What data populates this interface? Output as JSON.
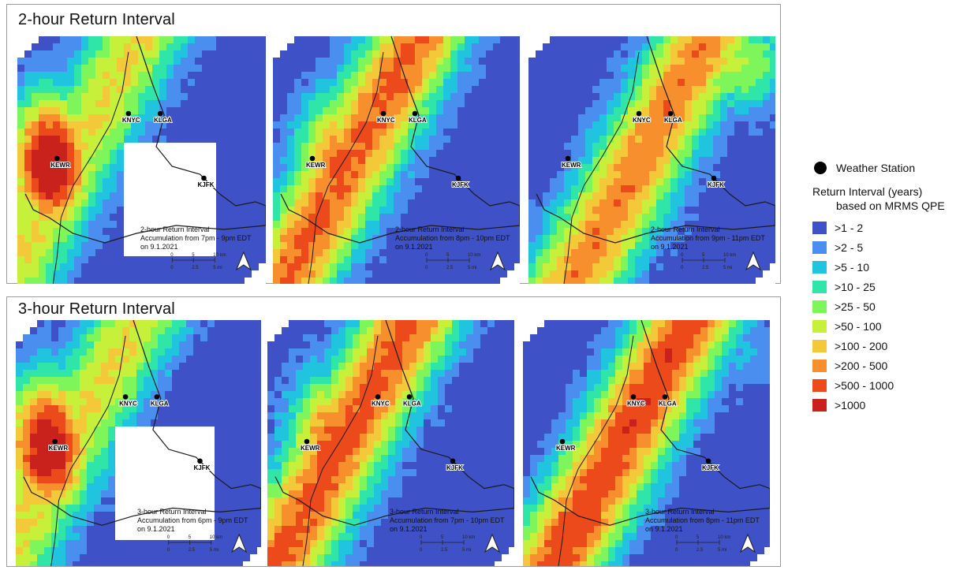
{
  "sections": [
    {
      "title": "2-hour Return Interval",
      "panels": [
        {
          "line1": "2-hour Return Interval",
          "line2": "Accumulation from 7pm - 9pm EDT",
          "line3": "on 9.1.2021",
          "peak_class": 10,
          "west_bias": 1.0,
          "intensity": 0.58
        },
        {
          "line1": "2-hour Return Interval",
          "line2": "Accumulation from 8pm - 10pm EDT",
          "line3": "on 9.1.2021",
          "peak_class": 10,
          "west_bias": 0.45,
          "intensity": 0.78
        },
        {
          "line1": "2-hour Return Interval",
          "line2": "Accumulation from 9pm - 11pm EDT",
          "line3": "on 9.1.2021",
          "peak_class": 10,
          "west_bias": -0.3,
          "intensity": 0.74
        }
      ]
    },
    {
      "title": "3-hour Return Interval",
      "panels": [
        {
          "line1": "3-hour Return Interval",
          "line2": "Accumulation from 6pm - 9pm EDT",
          "line3": "on 9.1.2021",
          "peak_class": 10,
          "west_bias": 1.0,
          "intensity": 0.58
        },
        {
          "line1": "3-hour Return Interval",
          "line2": "Accumulation from 7pm - 10pm EDT",
          "line3": "on 9.1.2021",
          "peak_class": 10,
          "west_bias": 0.5,
          "intensity": 0.8
        },
        {
          "line1": "3-hour Return Interval",
          "line2": "Accumulation from 8pm - 11pm EDT",
          "line3": "on 9.1.2021",
          "peak_class": 10,
          "west_bias": 0.0,
          "intensity": 0.84
        }
      ]
    }
  ],
  "stations": [
    "KNYC",
    "KLGA",
    "KEWR",
    "KJFK"
  ],
  "scale_bar": {
    "km_ticks": [
      "0",
      "5",
      "10 km"
    ],
    "mi_ticks": [
      "0",
      "2.5",
      "5 mi"
    ]
  },
  "north_arrow_icon": "north-arrow-icon",
  "legend": {
    "station_label": "Weather Station",
    "title": "Return Interval (years)",
    "subtitle": "based on MRMS QPE",
    "classes": [
      {
        "label": ">1 - 2",
        "color": "#3f51c7"
      },
      {
        "label": ">2 - 5",
        "color": "#4a8ff0"
      },
      {
        "label": ">5 - 10",
        "color": "#21c4df"
      },
      {
        "label": ">10 - 25",
        "color": "#2fe6a8"
      },
      {
        "label": ">25 - 50",
        "color": "#7ef55a"
      },
      {
        "label": ">50 - 100",
        "color": "#c6f03a"
      },
      {
        "label": ">100 - 200",
        "color": "#f3c93a"
      },
      {
        "label": ">200 - 500",
        "color": "#f7902c"
      },
      {
        "label": ">500 - 1000",
        "color": "#ec4a1a"
      },
      {
        "label": ">1000",
        "color": "#c9211c"
      }
    ]
  }
}
